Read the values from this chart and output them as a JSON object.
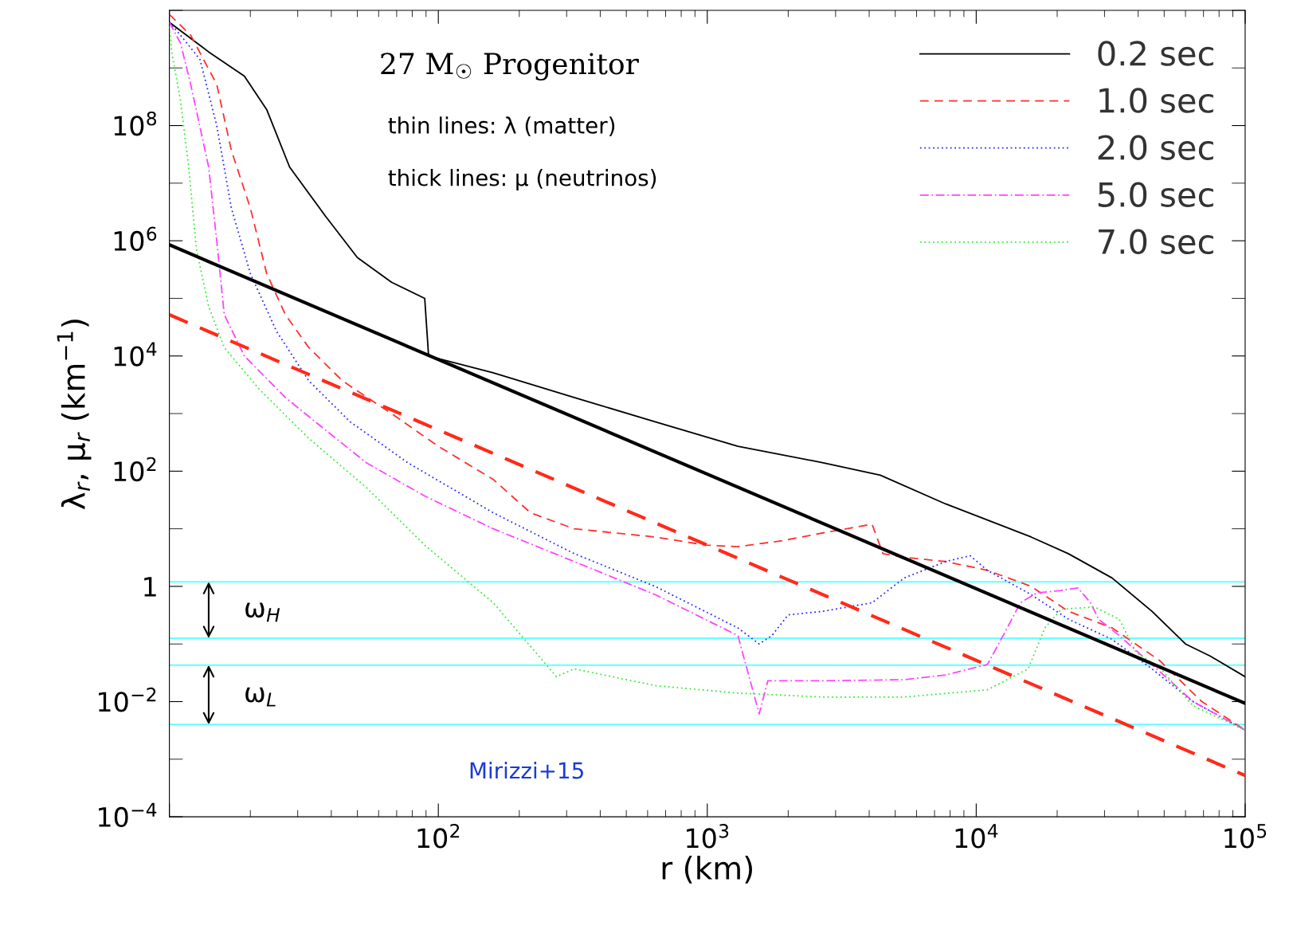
{
  "chart_data": {
    "type": "line",
    "xlabel": "r (km)",
    "ylabel": "λ$_{r}$, μ$_{r}$ (km$^{−1}$)",
    "log": "xy",
    "xlim": [
      10,
      100000
    ],
    "ylim": [
      0.0001,
      10000000000
    ],
    "xticks": [
      {
        "value": 10,
        "label": null
      },
      {
        "value": 100,
        "label": "10$^{2}$"
      },
      {
        "value": 1000,
        "label": "10$^{3}$"
      },
      {
        "value": 10000,
        "label": "10$^{4}$"
      },
      {
        "value": 100000,
        "label": "10$^{5}$"
      }
    ],
    "yticks": [
      {
        "value": 0.0001,
        "label": "10$^{−4}$"
      },
      {
        "value": 0.01,
        "label": "10$^{−2}$"
      },
      {
        "value": 1,
        "label": "1"
      },
      {
        "value": 100,
        "label": "10$^{2}$"
      },
      {
        "value": 10000,
        "label": "10$^{4}$"
      },
      {
        "value": 1000000,
        "label": "10$^{6}$"
      },
      {
        "value": 100000000,
        "label": "10$^{8}$"
      }
    ],
    "grid": false,
    "legend": "top right",
    "series": [
      {
        "name": "0.2 sec",
        "color": "#000000",
        "line_style": "solid",
        "x": [
          10,
          14,
          19,
          23,
          28,
          38,
          50,
          67,
          89,
          92,
          160,
          320,
          640,
          1300,
          2700,
          4400,
          7700,
          16000,
          22000,
          32000,
          45000,
          60000,
          74000,
          100000
        ],
        "values": [
          6200000000,
          1900000000,
          720000000,
          190000000,
          19000000,
          2700000,
          510000,
          190000,
          100000,
          10000,
          5100,
          1900,
          720,
          270,
          140,
          85,
          27,
          7.2,
          3.7,
          1.4,
          0.37,
          0.1,
          0.062,
          0.027
        ]
      },
      {
        "name": "1.0 sec",
        "color": "#ff3030",
        "line_style": "dashed",
        "x": [
          10,
          12,
          15,
          17,
          20,
          23,
          27,
          33,
          44,
          67,
          100,
          160,
          220,
          320,
          640,
          990,
          1300,
          1900,
          2700,
          4100,
          4500,
          5400,
          7700,
          11000,
          16000,
          22000,
          32000,
          48000,
          69000,
          100000
        ],
        "values": [
          8500000000,
          3700000000,
          520000000,
          37000000,
          3700000,
          270000,
          52000,
          14000,
          3700,
          1000,
          270,
          72,
          19,
          10,
          7.2,
          5.2,
          4.9,
          6.2,
          8.5,
          12,
          3.7,
          3.2,
          2.7,
          1.9,
          1,
          0.37,
          0.19,
          0.052,
          0.01,
          0.0032
        ]
      },
      {
        "name": "2.0 sec",
        "color": "#2a2aff",
        "line_style": "dotted",
        "x": [
          10,
          11,
          13,
          15,
          17,
          20,
          25,
          33,
          47,
          77,
          160,
          320,
          640,
          1300,
          1560,
          1740,
          2000,
          2700,
          4100,
          5400,
          7700,
          9500,
          11000,
          16000,
          22000,
          32000,
          45000,
          64000,
          100000
        ],
        "values": [
          6200000000,
          3700000000,
          1400000000,
          100000000,
          3700000,
          270000,
          27000,
          3700,
          720,
          140,
          19,
          3.7,
          1,
          0.19,
          0.1,
          0.14,
          0.32,
          0.37,
          0.52,
          1.4,
          2.7,
          3.4,
          1.9,
          0.72,
          0.27,
          0.12,
          0.037,
          0.01,
          0.0032
        ]
      },
      {
        "name": "5.0 sec",
        "color": "#ff44ff",
        "line_style": "dashdot",
        "x": [
          10,
          11,
          12,
          14,
          15,
          16,
          19,
          27,
          38,
          54,
          89,
          160,
          320,
          640,
          1300,
          1560,
          1680,
          2700,
          5400,
          7700,
          11000,
          12600,
          14600,
          16800,
          20700,
          23900,
          26600,
          28500,
          34000,
          45000,
          64000,
          100000
        ],
        "values": [
          6200000000,
          2700000000,
          520000000,
          19000000,
          1000000,
          52000,
          10000,
          1900,
          520,
          140,
          37,
          10,
          2.7,
          0.72,
          0.14,
          0.0061,
          0.023,
          0.023,
          0.024,
          0.029,
          0.044,
          0.14,
          0.52,
          0.77,
          0.85,
          0.94,
          0.52,
          0.27,
          0.14,
          0.044,
          0.01,
          0.0032
        ]
      },
      {
        "name": "7.0 sec",
        "color": "#33ee33",
        "line_style": "dotted",
        "x": [
          10,
          10.2,
          11,
          11.8,
          12.6,
          14,
          16,
          21.5,
          33,
          54,
          89,
          160,
          275,
          320,
          640,
          1300,
          2700,
          5400,
          11000,
          15600,
          18000,
          20700,
          27500,
          34000,
          39300,
          48500,
          64000,
          100000
        ],
        "values": [
          5200000000,
          1900000000,
          270000000,
          19000000,
          720000,
          72000,
          14000,
          2700,
          370,
          52,
          5.2,
          0.52,
          0.027,
          0.037,
          0.019,
          0.014,
          0.012,
          0.012,
          0.016,
          0.037,
          0.19,
          0.4,
          0.44,
          0.27,
          0.072,
          0.037,
          0.0085,
          0.0032
        ]
      },
      {
        "color": "#000000",
        "line_style": "solid",
        "x": [
          10,
          100000
        ],
        "values": [
          850000,
          0.0093
        ]
      },
      {
        "color": "#ff2a1a",
        "line_style": "dashed",
        "x": [
          10,
          100000
        ],
        "values": [
          52000,
          0.00052
        ]
      }
    ],
    "ref_lines": [
      {
        "axis": "y",
        "value": 1.2,
        "color": "#66ffff"
      },
      {
        "axis": "y",
        "value": 0.126,
        "color": "#66ffff"
      },
      {
        "axis": "y",
        "value": 0.043,
        "color": "#66ffff"
      },
      {
        "axis": "y",
        "value": 0.004,
        "color": "#66ffff"
      }
    ],
    "annotations": [
      "27 M$_{☉}$ Progenitor",
      "thin lines: λ (matter)",
      "thick lines: μ (neutrinos)",
      {
        "text": "ω$_{H}$",
        "x": 14,
        "y": 1.2
      },
      {
        "text": "ω$_{L}$",
        "x": 14,
        "y": 0.043
      },
      "Mirizzi+15"
    ]
  }
}
